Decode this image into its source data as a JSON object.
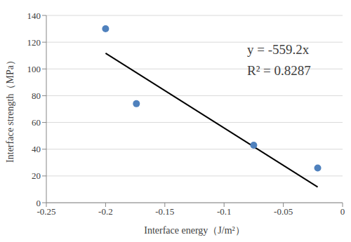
{
  "chart_data": {
    "type": "scatter",
    "x_label": "Interface energy（J/m²）",
    "y_label": "Interface strength（MPa）",
    "xlim": [
      -0.25,
      0
    ],
    "xticks": [
      -0.25,
      -0.2,
      -0.15,
      -0.1,
      -0.05,
      0
    ],
    "ylim": [
      0,
      140
    ],
    "yticks": [
      0,
      20,
      40,
      60,
      80,
      100,
      120,
      140
    ],
    "grid": true,
    "series": [
      {
        "type": "scatter",
        "marker": "circle",
        "color": "#4f81bd",
        "x": [
          -0.2,
          -0.174,
          -0.075,
          -0.021
        ],
        "values": [
          130,
          74,
          43,
          26
        ]
      },
      {
        "type": "line",
        "line_style": "solid",
        "color": "#000000",
        "x": [
          -0.2,
          -0.021
        ],
        "values": [
          111.8,
          11.7
        ]
      }
    ],
    "annotations": [
      "y = -559.2x",
      "R² = 0.8287"
    ]
  }
}
